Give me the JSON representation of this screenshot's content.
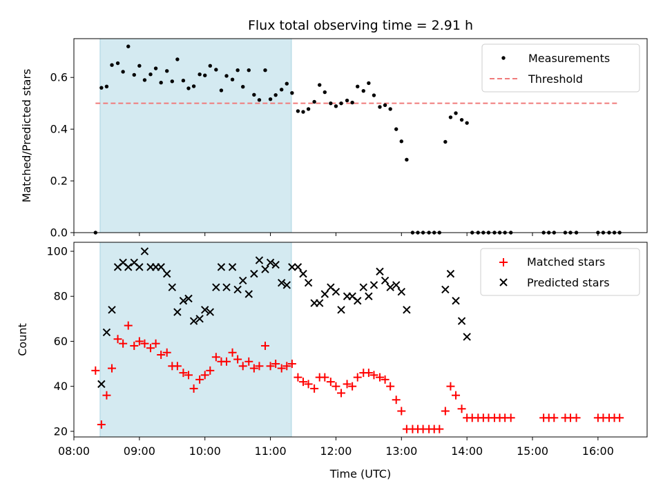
{
  "chart_data": [
    {
      "type": "scatter",
      "title": "Flux total observing time = 2.91 h",
      "xlabel": "",
      "ylabel": "Matched/Predicted stars",
      "xlim": [
        8.0,
        16.75
      ],
      "ylim": [
        0,
        0.75
      ],
      "yticks": [
        0.0,
        0.2,
        0.4,
        0.6
      ],
      "grid": false,
      "legend_position": "top-right",
      "shaded_interval": {
        "from": 8.4,
        "to": 11.32,
        "color": "#d4eaf1"
      },
      "threshold": {
        "name": "Threshold",
        "value": 0.5,
        "from": 8.33,
        "to": 16.33,
        "color": "#f07a7a"
      },
      "series": [
        {
          "name": "Measurements",
          "color": "#000000",
          "marker": "dot",
          "x": [
            8.33,
            8.42,
            8.5,
            8.58,
            8.67,
            8.75,
            8.83,
            8.92,
            9.0,
            9.08,
            9.17,
            9.25,
            9.33,
            9.42,
            9.5,
            9.58,
            9.67,
            9.75,
            9.83,
            9.92,
            10.0,
            10.08,
            10.17,
            10.25,
            10.33,
            10.42,
            10.5,
            10.58,
            10.67,
            10.75,
            10.83,
            10.92,
            11.0,
            11.08,
            11.17,
            11.25,
            11.33,
            11.42,
            11.5,
            11.58,
            11.67,
            11.75,
            11.83,
            11.92,
            12.0,
            12.08,
            12.17,
            12.25,
            12.33,
            12.42,
            12.5,
            12.58,
            12.67,
            12.75,
            12.83,
            12.92,
            13.0,
            13.08,
            13.17,
            13.25,
            13.33,
            13.42,
            13.5,
            13.58,
            13.67,
            13.75,
            13.83,
            13.92,
            14.0,
            14.08,
            14.17,
            14.25,
            14.33,
            14.42,
            14.5,
            14.58,
            14.67,
            15.17,
            15.25,
            15.33,
            15.5,
            15.58,
            15.67,
            16.0,
            16.08,
            16.17,
            16.25,
            16.33
          ],
          "y": [
            0.0,
            0.56,
            0.565,
            0.648,
            0.655,
            0.622,
            0.72,
            0.61,
            0.645,
            0.59,
            0.612,
            0.635,
            0.58,
            0.625,
            0.585,
            0.67,
            0.588,
            0.558,
            0.566,
            0.612,
            0.608,
            0.645,
            0.63,
            0.55,
            0.606,
            0.592,
            0.628,
            0.564,
            0.628,
            0.533,
            0.513,
            0.628,
            0.516,
            0.532,
            0.553,
            0.576,
            0.54,
            0.47,
            0.467,
            0.478,
            0.506,
            0.571,
            0.543,
            0.5,
            0.489,
            0.5,
            0.511,
            0.503,
            0.565,
            0.548,
            0.578,
            0.531,
            0.486,
            0.493,
            0.478,
            0.4,
            0.353,
            0.282,
            0.0,
            0.0,
            0.0,
            0.0,
            0.0,
            0.0,
            0.351,
            0.446,
            0.462,
            0.436,
            0.424,
            0.0,
            0.0,
            0.0,
            0.0,
            0.0,
            0.0,
            0.0,
            0.0,
            0.0,
            0.0,
            0.0,
            0.0,
            0.0,
            0.0,
            0.0,
            0.0,
            0.0,
            0.0,
            0.0
          ]
        }
      ]
    },
    {
      "type": "scatter",
      "xlabel": "Time (UTC)",
      "ylabel": "Count",
      "xlim": [
        8.0,
        16.75
      ],
      "ylim": [
        17.5,
        104
      ],
      "yticks": [
        20,
        40,
        60,
        80,
        100
      ],
      "xticks": [
        8,
        9,
        10,
        11,
        12,
        13,
        14,
        15,
        16
      ],
      "xtick_labels": [
        "08:00",
        "09:00",
        "10:00",
        "11:00",
        "12:00",
        "13:00",
        "14:00",
        "15:00",
        "16:00"
      ],
      "grid": false,
      "legend_position": "top-right",
      "shaded_interval": {
        "from": 8.4,
        "to": 11.32,
        "color": "#d4eaf1"
      },
      "series": [
        {
          "name": "Matched stars",
          "color": "#ff0000",
          "marker": "plus",
          "x": [
            8.33,
            8.42,
            8.5,
            8.58,
            8.67,
            8.75,
            8.83,
            8.92,
            9.0,
            9.08,
            9.17,
            9.25,
            9.33,
            9.42,
            9.5,
            9.58,
            9.67,
            9.75,
            9.83,
            9.92,
            10.0,
            10.08,
            10.17,
            10.25,
            10.33,
            10.42,
            10.5,
            10.58,
            10.67,
            10.75,
            10.83,
            10.92,
            11.0,
            11.08,
            11.17,
            11.25,
            11.33,
            11.42,
            11.5,
            11.58,
            11.67,
            11.75,
            11.83,
            11.92,
            12.0,
            12.08,
            12.17,
            12.25,
            12.33,
            12.42,
            12.5,
            12.58,
            12.67,
            12.75,
            12.83,
            12.92,
            13.0,
            13.08,
            13.17,
            13.25,
            13.33,
            13.42,
            13.5,
            13.58,
            13.67,
            13.75,
            13.83,
            13.92,
            14.0,
            14.08,
            14.17,
            14.25,
            14.33,
            14.42,
            14.5,
            14.58,
            14.67,
            15.17,
            15.25,
            15.33,
            15.5,
            15.58,
            15.67,
            16.0,
            16.08,
            16.17,
            16.25,
            16.33
          ],
          "y": [
            47,
            23,
            36,
            48,
            61,
            59,
            67,
            58,
            60,
            59,
            57,
            59,
            54,
            55,
            49,
            49,
            46,
            45,
            39,
            43,
            45,
            47,
            53,
            51,
            51,
            55,
            52,
            49,
            51,
            48,
            49,
            58,
            49,
            50,
            48,
            49,
            50,
            44,
            42,
            41,
            39,
            44,
            44,
            42,
            40,
            37,
            41,
            40,
            44,
            46,
            46,
            45,
            44,
            43,
            40,
            34,
            29,
            21,
            21,
            21,
            21,
            21,
            21,
            21,
            29,
            40,
            36,
            30,
            26,
            26,
            26,
            26,
            26,
            26,
            26,
            26,
            26,
            26,
            26,
            26,
            26,
            26,
            26,
            26,
            26,
            26,
            26,
            26
          ]
        },
        {
          "name": "Predicted stars",
          "color": "#000000",
          "marker": "x",
          "x": [
            8.42,
            8.5,
            8.58,
            8.67,
            8.75,
            8.83,
            8.92,
            9.0,
            9.08,
            9.17,
            9.25,
            9.33,
            9.42,
            9.5,
            9.58,
            9.67,
            9.75,
            9.83,
            9.92,
            10.0,
            10.08,
            10.17,
            10.25,
            10.33,
            10.42,
            10.5,
            10.58,
            10.67,
            10.75,
            10.83,
            10.92,
            11.0,
            11.08,
            11.17,
            11.25,
            11.33,
            11.42,
            11.5,
            11.58,
            11.67,
            11.75,
            11.83,
            11.92,
            12.0,
            12.08,
            12.17,
            12.25,
            12.33,
            12.42,
            12.5,
            12.58,
            12.67,
            12.75,
            12.83,
            12.92,
            13.0,
            13.08,
            13.67,
            13.75,
            13.83,
            13.92,
            14.0
          ],
          "y": [
            41,
            64,
            74,
            93,
            95,
            93,
            95,
            93,
            100,
            93,
            93,
            93,
            90,
            84,
            73,
            78,
            79,
            69,
            70,
            74,
            73,
            84,
            93,
            84,
            93,
            83,
            87,
            81,
            90,
            96,
            92,
            95,
            94,
            86,
            85,
            93,
            93,
            90,
            86,
            77,
            77,
            81,
            84,
            82,
            74,
            80,
            80,
            78,
            84,
            80,
            85,
            91,
            87,
            84,
            85,
            82,
            74,
            83,
            90,
            78,
            69,
            62
          ]
        }
      ]
    }
  ]
}
